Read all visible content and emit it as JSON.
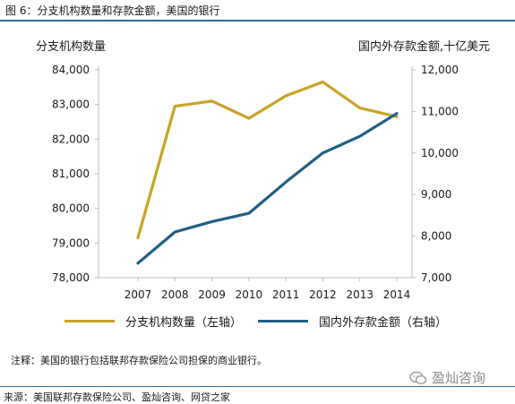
{
  "header": {
    "title": "图 6：分支机构数量和存款金额，美国的银行"
  },
  "chart_data": {
    "type": "line",
    "title": "",
    "x": [
      "2007",
      "2008",
      "2009",
      "2010",
      "2011",
      "2012",
      "2013",
      "2014"
    ],
    "y_left_label": "分支机构数量",
    "y_right_label": "国内外存款金额,十亿美元",
    "y_left_range": [
      78000,
      84000
    ],
    "y_left_ticks": [
      "78,000",
      "79,000",
      "80,000",
      "81,000",
      "82,000",
      "83,000",
      "84,000"
    ],
    "y_right_range": [
      7000,
      12000
    ],
    "y_right_ticks": [
      "7,000",
      "8,000",
      "9,000",
      "10,000",
      "11,000",
      "12,000"
    ],
    "grid": false,
    "legend_position": "bottom",
    "series": [
      {
        "name": "分支机构数量（左轴）",
        "axis": "left",
        "color": "#c9a227",
        "values": [
          79150,
          82950,
          83100,
          82600,
          83250,
          83650,
          82900,
          82650
        ]
      },
      {
        "name": "国内外存款金额（右轴）",
        "axis": "right",
        "color": "#1f5f85",
        "values": [
          7350,
          8100,
          8350,
          8550,
          9300,
          10000,
          10400,
          10950
        ]
      }
    ]
  },
  "note": "注释：美国的银行包括联邦存款保险公司担保的商业银行。",
  "watermark": "盈灿咨询",
  "source": "来源：美国联邦存款保险公司、盈灿咨询、网贷之家"
}
